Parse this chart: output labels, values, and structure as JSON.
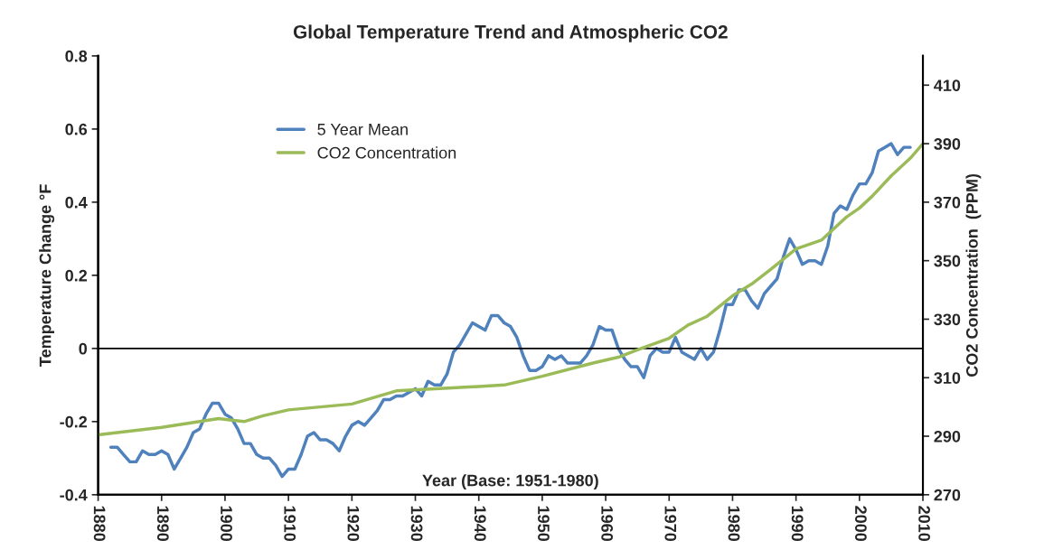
{
  "chart_data": {
    "type": "line",
    "title": "Global Temperature Trend and Atmospheric CO2",
    "xlabel": "Year (Base: 1951-1980)",
    "ylabel": "Temperature Change °F",
    "y2label": "CO2 Concentration  (PPM)",
    "xlim": [
      1880,
      2010
    ],
    "xticks": [
      1880,
      1890,
      1900,
      1910,
      1920,
      1930,
      1940,
      1950,
      1960,
      1970,
      1980,
      1990,
      2000,
      2010
    ],
    "ylim": [
      -0.4,
      0.8
    ],
    "yticks": [
      -0.4,
      -0.2,
      0,
      0.2,
      0.4,
      0.6,
      0.8
    ],
    "y2lim": [
      270,
      420
    ],
    "y2ticks": [
      270,
      290,
      310,
      330,
      350,
      370,
      390,
      410
    ],
    "grid": false,
    "legend": "top left",
    "marker": "none",
    "line_style": "solid",
    "ref_lines": [
      {
        "axis": "y",
        "value": 0,
        "color": "#000000"
      }
    ],
    "series": [
      {
        "name": "5 Year Mean",
        "color": "#4f81bd",
        "x": [
          1882,
          1883,
          1884,
          1885,
          1886,
          1887,
          1888,
          1889,
          1890,
          1891,
          1892,
          1893,
          1894,
          1895,
          1896,
          1897,
          1898,
          1899,
          1900,
          1901,
          1902,
          1903,
          1904,
          1905,
          1906,
          1907,
          1908,
          1909,
          1910,
          1911,
          1912,
          1913,
          1914,
          1915,
          1916,
          1917,
          1918,
          1919,
          1920,
          1921,
          1922,
          1923,
          1924,
          1925,
          1926,
          1927,
          1928,
          1929,
          1930,
          1931,
          1932,
          1933,
          1934,
          1935,
          1936,
          1937,
          1938,
          1939,
          1940,
          1941,
          1942,
          1943,
          1944,
          1945,
          1946,
          1947,
          1948,
          1949,
          1950,
          1951,
          1952,
          1953,
          1954,
          1955,
          1956,
          1957,
          1958,
          1959,
          1960,
          1961,
          1962,
          1963,
          1964,
          1965,
          1966,
          1967,
          1968,
          1969,
          1970,
          1971,
          1972,
          1973,
          1974,
          1975,
          1976,
          1977,
          1978,
          1979,
          1980,
          1981,
          1982,
          1983,
          1984,
          1985,
          1986,
          1987,
          1988,
          1989,
          1990,
          1991,
          1992,
          1993,
          1994,
          1995,
          1996,
          1997,
          1998,
          1999,
          2000,
          2001,
          2002,
          2003,
          2004,
          2005,
          2006,
          2007,
          2008
        ],
        "values": [
          -0.27,
          -0.27,
          -0.29,
          -0.31,
          -0.31,
          -0.28,
          -0.29,
          -0.29,
          -0.28,
          -0.29,
          -0.33,
          -0.3,
          -0.27,
          -0.23,
          -0.22,
          -0.18,
          -0.15,
          -0.15,
          -0.18,
          -0.19,
          -0.22,
          -0.26,
          -0.26,
          -0.29,
          -0.3,
          -0.3,
          -0.32,
          -0.35,
          -0.33,
          -0.33,
          -0.29,
          -0.24,
          -0.23,
          -0.25,
          -0.25,
          -0.26,
          -0.28,
          -0.24,
          -0.21,
          -0.2,
          -0.21,
          -0.19,
          -0.17,
          -0.14,
          -0.14,
          -0.13,
          -0.13,
          -0.12,
          -0.11,
          -0.13,
          -0.09,
          -0.1,
          -0.1,
          -0.07,
          -0.01,
          0.01,
          0.04,
          0.07,
          0.06,
          0.05,
          0.09,
          0.09,
          0.07,
          0.06,
          0.03,
          -0.02,
          -0.06,
          -0.06,
          -0.05,
          -0.02,
          -0.03,
          -0.02,
          -0.04,
          -0.04,
          -0.04,
          -0.02,
          0.01,
          0.06,
          0.05,
          0.05,
          0.0,
          -0.03,
          -0.05,
          -0.05,
          -0.08,
          -0.02,
          0.0,
          -0.01,
          -0.01,
          0.03,
          -0.01,
          -0.02,
          -0.03,
          0.0,
          -0.03,
          -0.01,
          0.05,
          0.12,
          0.12,
          0.16,
          0.16,
          0.13,
          0.11,
          0.15,
          0.17,
          0.19,
          0.25,
          0.3,
          0.27,
          0.23,
          0.24,
          0.24,
          0.23,
          0.28,
          0.37,
          0.39,
          0.38,
          0.42,
          0.45,
          0.45,
          0.48,
          0.54,
          0.55,
          0.56,
          0.53,
          0.55,
          0.55
        ]
      },
      {
        "name": "CO2 Concentration",
        "color": "#9bbb59",
        "axis": "y2",
        "x": [
          1880,
          1890,
          1899,
          1903,
          1906,
          1910,
          1920,
          1927,
          1940,
          1944,
          1950,
          1958,
          1962,
          1965,
          1970,
          1973,
          1976,
          1980,
          1983,
          1986,
          1990,
          1994,
          1998,
          2000,
          2002,
          2005,
          2008,
          2010
        ],
        "values": [
          290.5,
          293,
          296,
          295,
          297,
          299,
          301,
          305.5,
          307,
          307.5,
          310.5,
          315,
          317,
          319.5,
          323.5,
          328,
          331,
          338,
          342,
          347,
          354,
          357,
          365,
          368,
          372,
          379,
          385,
          390
        ]
      }
    ]
  }
}
